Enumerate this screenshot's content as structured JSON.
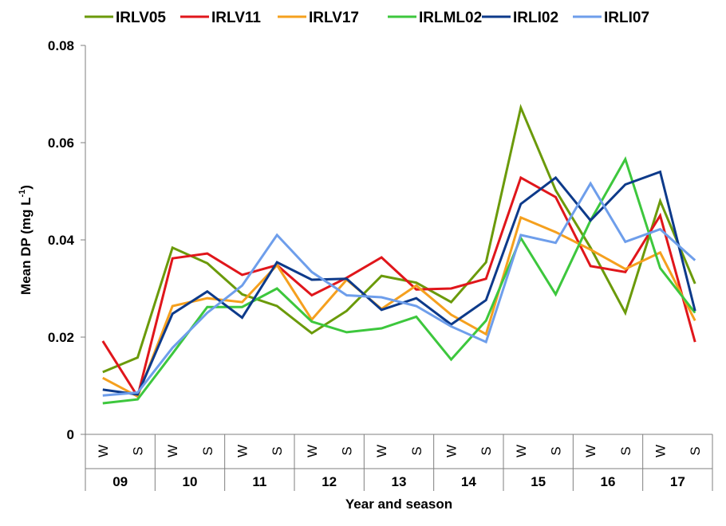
{
  "chart_data": {
    "type": "line",
    "ylabel_main": "Mean DP (mg L",
    "ylabel_sup": "-1",
    "ylabel_close": ")",
    "xlabel": "Year and season",
    "ylim": [
      0,
      0.08
    ],
    "yticks": [
      "0",
      "0.02",
      "0.04",
      "0.06",
      "0.08"
    ],
    "ytick_values": [
      0,
      0.02,
      0.04,
      0.06,
      0.08
    ],
    "seasons": [
      "W",
      "S",
      "W",
      "S",
      "W",
      "S",
      "W",
      "S",
      "W",
      "S",
      "W",
      "S",
      "W",
      "S",
      "W",
      "S",
      "W",
      "S"
    ],
    "years": [
      "09",
      "10",
      "11",
      "12",
      "13",
      "14",
      "15",
      "16",
      "17"
    ],
    "grid": false,
    "legend_position": "top",
    "series": [
      {
        "name": "IRLV05",
        "color": "#6B9A0A",
        "values": [
          0.0128,
          0.0158,
          0.0384,
          0.0352,
          0.0288,
          0.0264,
          0.0208,
          0.0254,
          0.0326,
          0.0312,
          0.0272,
          0.0354,
          0.0672,
          0.0502,
          0.0384,
          0.025,
          0.048,
          0.031
        ]
      },
      {
        "name": "IRLV11",
        "color": "#E0161B",
        "values": [
          0.0192,
          0.0078,
          0.0362,
          0.0372,
          0.0328,
          0.0348,
          0.0286,
          0.0322,
          0.0364,
          0.0298,
          0.03,
          0.032,
          0.0528,
          0.0488,
          0.0346,
          0.0334,
          0.045,
          0.019
        ]
      },
      {
        "name": "IRLV17",
        "color": "#F5A01E",
        "values": [
          0.0116,
          0.0078,
          0.0264,
          0.028,
          0.0272,
          0.0348,
          0.0236,
          0.0318,
          0.0258,
          0.0306,
          0.0246,
          0.0206,
          0.0446,
          0.0416,
          0.038,
          0.034,
          0.0374,
          0.0234
        ]
      },
      {
        "name": "IRLML02",
        "color": "#3DC73D",
        "values": [
          0.0064,
          0.0072,
          0.0166,
          0.0262,
          0.0262,
          0.03,
          0.0232,
          0.021,
          0.0218,
          0.0242,
          0.0154,
          0.0234,
          0.0404,
          0.0288,
          0.044,
          0.0566,
          0.0342,
          0.025
        ]
      },
      {
        "name": "IRLI02",
        "color": "#0D3A8A",
        "values": [
          0.0092,
          0.0082,
          0.0248,
          0.0294,
          0.024,
          0.0354,
          0.0318,
          0.032,
          0.0256,
          0.028,
          0.0226,
          0.0276,
          0.0474,
          0.0528,
          0.044,
          0.0514,
          0.054,
          0.0254
        ]
      },
      {
        "name": "IRLI07",
        "color": "#6E9EEB",
        "values": [
          0.008,
          0.0086,
          0.0178,
          0.025,
          0.0306,
          0.041,
          0.0334,
          0.0286,
          0.0282,
          0.0264,
          0.0222,
          0.019,
          0.041,
          0.0394,
          0.0516,
          0.0396,
          0.0422,
          0.0358
        ]
      }
    ]
  }
}
